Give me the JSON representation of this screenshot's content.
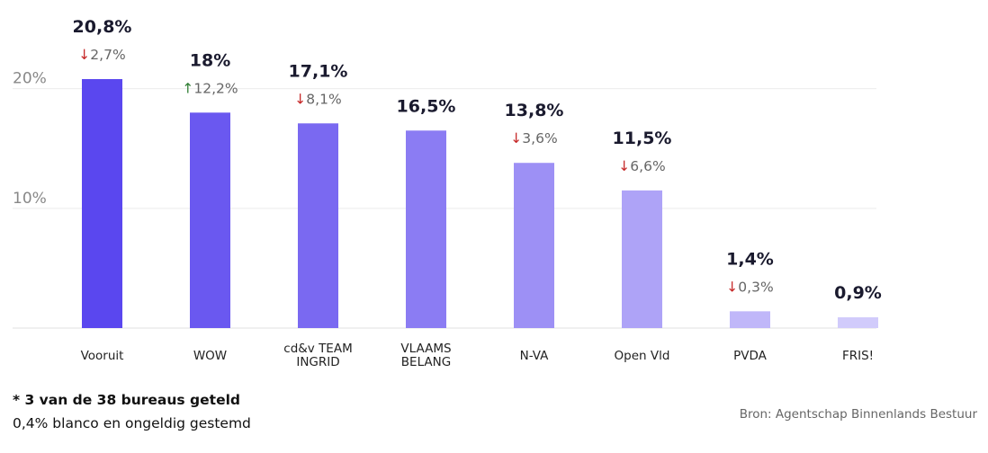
{
  "chart_data": {
    "type": "bar",
    "categories": [
      "Vooruit",
      "WOW",
      "cd&v TEAM INGRID",
      "VLAAMS BELANG",
      "N-VA",
      "Open Vld",
      "PVDA",
      "FRIS!"
    ],
    "category_lines": [
      [
        "Vooruit"
      ],
      [
        "WOW"
      ],
      [
        "cd&v TEAM",
        "INGRID"
      ],
      [
        "VLAAMS",
        "BELANG"
      ],
      [
        "N-VA"
      ],
      [
        "Open Vld"
      ],
      [
        "PVDA"
      ],
      [
        "FRIS!"
      ]
    ],
    "values": [
      20.8,
      18,
      17.1,
      16.5,
      13.8,
      11.5,
      1.4,
      0.9
    ],
    "value_labels": [
      "20,8%",
      "18%",
      "17,1%",
      "16,5%",
      "13,8%",
      "11,5%",
      "1,4%",
      "0,9%"
    ],
    "changes": [
      {
        "direction": "down",
        "label": "2,7%"
      },
      {
        "direction": "up",
        "label": "12,2%"
      },
      {
        "direction": "down",
        "label": "8,1%"
      },
      null,
      {
        "direction": "down",
        "label": "3,6%"
      },
      {
        "direction": "down",
        "label": "6,6%"
      },
      {
        "direction": "down",
        "label": "0,3%"
      },
      null
    ],
    "bar_colors": [
      "#5a47ef",
      "#6a58f0",
      "#7a69f1",
      "#8b7cf3",
      "#9d90f5",
      "#aea3f7",
      "#c0b7f9",
      "#d1cbfb"
    ],
    "change_colors": {
      "down": "#c62828",
      "up": "#2e7d32"
    },
    "yticks": [
      {
        "value": 20,
        "label": "20%"
      },
      {
        "value": 10,
        "label": "10%"
      }
    ],
    "ylim": [
      0,
      20.8
    ],
    "grid": true
  },
  "footnotes": {
    "counted": "* 3 van de 38 bureaus geteld",
    "blank": "0,4% blanco en ongeldig gestemd"
  },
  "source": "Bron: Agentschap Binnenlands Bestuur"
}
